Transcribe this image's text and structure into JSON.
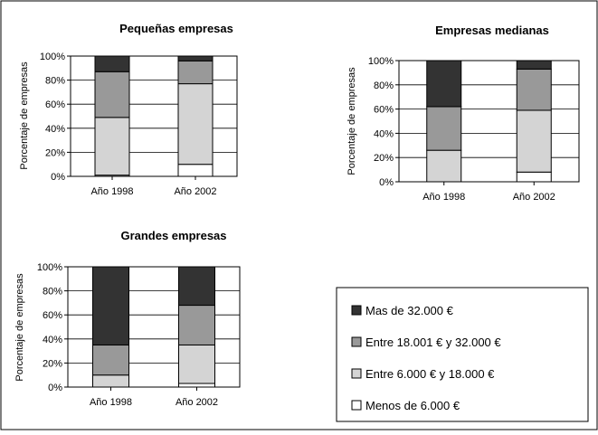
{
  "figure": {
    "legend": {
      "entries": [
        {
          "label": "Mas de 32.000 €",
          "color": "#333333"
        },
        {
          "label": "Entre 18.001 € y 32.000 €",
          "color": "#999999"
        },
        {
          "label": "Entre 6.000 € y 18.000 €",
          "color": "#d4d4d4"
        },
        {
          "label": "Menos de 6.000 €",
          "color": "#ffffff"
        }
      ]
    }
  },
  "chart_data": [
    {
      "type": "bar",
      "stacked": true,
      "title": "Pequeñas empresas",
      "ylabel": "Porcentaje de empresas",
      "categories": [
        "Año 1998",
        "Año 2002"
      ],
      "yticks": [
        "0%",
        "20%",
        "40%",
        "60%",
        "80%",
        "100%"
      ],
      "ylim": [
        0,
        100
      ],
      "series": [
        {
          "name": "Menos de 6.000 €",
          "values": [
            1,
            10
          ]
        },
        {
          "name": "Entre 6.000 € y 18.000 €",
          "values": [
            48,
            67
          ]
        },
        {
          "name": "Entre 18.001 € y 32.000 €",
          "values": [
            38,
            19
          ]
        },
        {
          "name": "Mas de 32.000 €",
          "values": [
            13,
            4
          ]
        }
      ]
    },
    {
      "type": "bar",
      "stacked": true,
      "title": "Empresas medianas",
      "ylabel": "Porcentaje de empresas",
      "categories": [
        "Año 1998",
        "Año 2002"
      ],
      "yticks": [
        "0%",
        "20%",
        "40%",
        "60%",
        "80%",
        "100%"
      ],
      "ylim": [
        0,
        100
      ],
      "series": [
        {
          "name": "Menos de 6.000 €",
          "values": [
            0,
            8
          ]
        },
        {
          "name": "Entre 6.000 € y 18.000 €",
          "values": [
            26,
            51
          ]
        },
        {
          "name": "Entre 18.001 € y 32.000 €",
          "values": [
            36,
            34
          ]
        },
        {
          "name": "Mas de 32.000 €",
          "values": [
            38,
            7
          ]
        }
      ]
    },
    {
      "type": "bar",
      "stacked": true,
      "title": "Grandes empresas",
      "ylabel": "Porcentaje de empresas",
      "categories": [
        "Año 1998",
        "Año 2002"
      ],
      "yticks": [
        "0%",
        "20%",
        "40%",
        "60%",
        "80%",
        "100%"
      ],
      "ylim": [
        0,
        100
      ],
      "series": [
        {
          "name": "Menos de 6.000 €",
          "values": [
            0,
            3
          ]
        },
        {
          "name": "Entre 6.000 € y 18.000 €",
          "values": [
            10,
            32
          ]
        },
        {
          "name": "Entre 18.001 € y 32.000 €",
          "values": [
            25,
            33
          ]
        },
        {
          "name": "Mas de 32.000 €",
          "values": [
            65,
            32
          ]
        }
      ]
    }
  ]
}
